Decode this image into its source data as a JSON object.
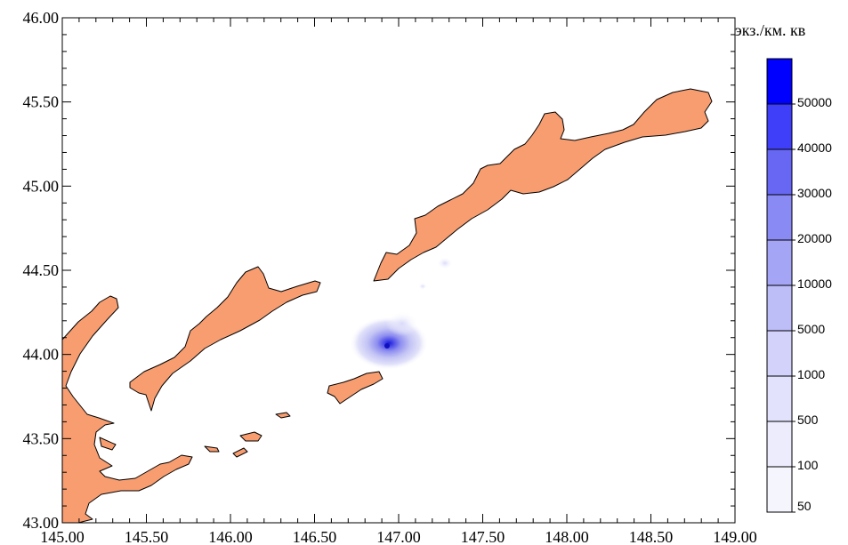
{
  "map": {
    "x_axis": {
      "ticks": [
        "145.00",
        "145.50",
        "146.00",
        "146.50",
        "147.00",
        "147.50",
        "148.00",
        "148.50",
        "149.00"
      ],
      "range": [
        145.0,
        149.0
      ]
    },
    "y_axis": {
      "ticks": [
        "46.00",
        "45.50",
        "45.00",
        "44.50",
        "44.00",
        "43.50",
        "43.00"
      ],
      "range": [
        43.0,
        46.0
      ]
    },
    "land_color": "#f79d70",
    "density_hotspot": {
      "lon": 146.95,
      "lat": 44.06
    }
  },
  "legend": {
    "title": "экз./км. кв",
    "levels": [
      "50000",
      "40000",
      "30000",
      "20000",
      "10000",
      "5000",
      "1000",
      "500",
      "100",
      "50"
    ],
    "colors": [
      "#0000ff",
      "#3f3ff9",
      "#6767f3",
      "#8a8af4",
      "#a5a5f6",
      "#bdbdf8",
      "#d2d2fa",
      "#e2e2fc",
      "#ececfd",
      "#f5f5fe"
    ]
  }
}
